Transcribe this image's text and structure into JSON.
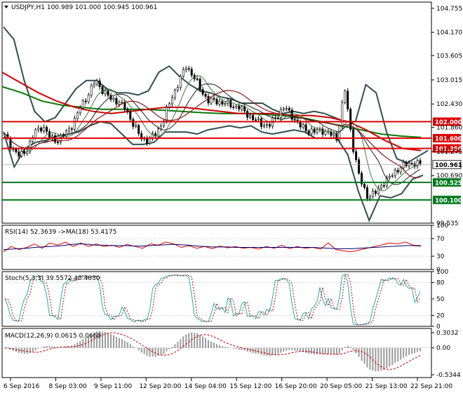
{
  "chart_data": {
    "type": "line",
    "main": {
      "symbol_label": "USDJPY,H1",
      "ohlc": "100.989 101.000 100.945 100.961",
      "ylim": [
        99.535,
        104.905
      ],
      "y_ticks": [
        "104.755",
        "104.170",
        "103.605",
        "103.015",
        "102.430",
        "101.860",
        "101.275",
        "100.690",
        "99.535"
      ],
      "x_labels": [
        "6 Sep 2016",
        "8 Sep 03:00",
        "9 Sep 11:00",
        "12 Sep 20:00",
        "14 Sep 04:00",
        "15 Sep 12:00",
        "16 Sep 20:00",
        "20 Sep 05:00",
        "21 Sep 13:00",
        "22 Sep 21:00"
      ],
      "price": [
        101.65,
        101.35,
        101.15,
        101.35,
        101.75,
        101.9,
        101.6,
        101.55,
        101.7,
        101.95,
        102.35,
        102.65,
        103.0,
        102.75,
        102.55,
        102.5,
        102.3,
        101.95,
        101.6,
        101.55,
        101.7,
        102.05,
        102.55,
        102.95,
        103.35,
        103.1,
        102.75,
        102.5,
        102.5,
        102.45,
        102.4,
        102.35,
        102.2,
        102.05,
        101.95,
        101.9,
        102.15,
        102.35,
        102.15,
        101.9,
        101.8,
        101.75,
        101.8,
        101.7,
        101.6,
        102.8,
        101.5,
        100.6,
        100.2,
        100.25,
        100.5,
        100.65,
        100.85,
        100.95,
        101.0,
        100.961
      ],
      "ma_slow": [
        103.2,
        102.95,
        102.7,
        102.5,
        102.35,
        102.25,
        102.2,
        102.25,
        102.3,
        102.35,
        102.35,
        102.3,
        102.25,
        102.2,
        102.2,
        102.2,
        102.15,
        102.15,
        102.1,
        102.0,
        101.8,
        101.55,
        101.35,
        101.3
      ],
      "ma_green": [
        102.85,
        102.7,
        102.5,
        102.4,
        102.35,
        102.3,
        102.3,
        102.3,
        102.28,
        102.25,
        102.22,
        102.2,
        102.2,
        102.18,
        102.15,
        102.1,
        102.0,
        101.9,
        101.8,
        101.7,
        101.65,
        101.62
      ],
      "bb_upper": [
        104.3,
        104.0,
        103.0,
        102.25,
        102.0,
        102.1,
        102.45,
        102.8,
        103.0,
        103.0,
        102.8,
        102.7,
        102.7,
        102.65,
        102.75,
        103.2,
        103.35,
        103.1,
        102.9,
        102.75,
        102.7,
        102.6,
        102.55,
        102.45,
        102.45,
        102.45,
        102.3,
        102.2,
        102.25,
        102.2,
        102.25,
        102.2,
        102.1,
        102.0,
        102.0,
        102.9,
        102.7,
        101.75,
        101.1,
        101.0,
        101.15,
        101.3
      ],
      "bb_lower": [
        101.75,
        100.9,
        101.35,
        101.5,
        101.55,
        101.65,
        101.7,
        101.75,
        101.9,
        102.0,
        101.95,
        101.7,
        101.45,
        101.45,
        101.5,
        101.75,
        101.75,
        101.75,
        101.7,
        101.8,
        101.85,
        101.9,
        101.85,
        101.9,
        101.75,
        101.7,
        101.75,
        101.8,
        101.75,
        101.6,
        101.6,
        101.6,
        101.2,
        100.3,
        99.6,
        100.2,
        100.15,
        100.25,
        100.6,
        100.7
      ],
      "hlines": [
        {
          "value": 102.0,
          "label": "102.000",
          "color": "#dd0000"
        },
        {
          "value": 101.6,
          "label": "101.600",
          "color": "#dd0000"
        },
        {
          "value": 101.35,
          "label": "101.350",
          "color": "#dd0000"
        },
        {
          "value": 100.525,
          "label": "100.525",
          "color": "#007a1e"
        },
        {
          "value": 100.1,
          "label": "100.100",
          "color": "#007a1e"
        }
      ],
      "current_price_label": "100.961"
    },
    "rsi": {
      "label": "RSI(14) 52.3639 ->MA(18) 53.4175",
      "ylim": [
        0,
        100
      ],
      "y_ticks": [
        "100",
        "70",
        "30",
        "0"
      ],
      "values": [
        40,
        52,
        45,
        50,
        58,
        48,
        60,
        55,
        62,
        52,
        60,
        52,
        58,
        52,
        55,
        50,
        57,
        52,
        48,
        58,
        55,
        62,
        58,
        50,
        54,
        48,
        52,
        47,
        53,
        49,
        52,
        48,
        50,
        46,
        52,
        48,
        55,
        47,
        52,
        48,
        50,
        46,
        60,
        45,
        42,
        40,
        44,
        48,
        52,
        56,
        60,
        58,
        62,
        55,
        54
      ],
      "ma": [
        45,
        46,
        47,
        48,
        50,
        51,
        52,
        53,
        55,
        57,
        58,
        57,
        55,
        55,
        54,
        54,
        54,
        53,
        53,
        54,
        55,
        56,
        57,
        56,
        55,
        53,
        52,
        51,
        51,
        51,
        50,
        50,
        50,
        50,
        50,
        50,
        50,
        50,
        50,
        50,
        50,
        49,
        48,
        47,
        47,
        47,
        48,
        49,
        50,
        51,
        52,
        53,
        54,
        54,
        53
      ]
    },
    "stoch": {
      "label": "Stoch(5,3,3) 39.5572 40.4030",
      "ylim": [
        0,
        100
      ],
      "y_ticks": [
        "100",
        "80",
        "50",
        "20",
        "0"
      ],
      "main_period": 5,
      "signal_shift": 1
    },
    "macd": {
      "label": "MACD(12,26,9) 0.0615 0.0668",
      "y_ticks": [
        "0.3032",
        "0.00",
        "-0.5344"
      ],
      "ylim": [
        -0.5344,
        0.3032
      ]
    }
  }
}
